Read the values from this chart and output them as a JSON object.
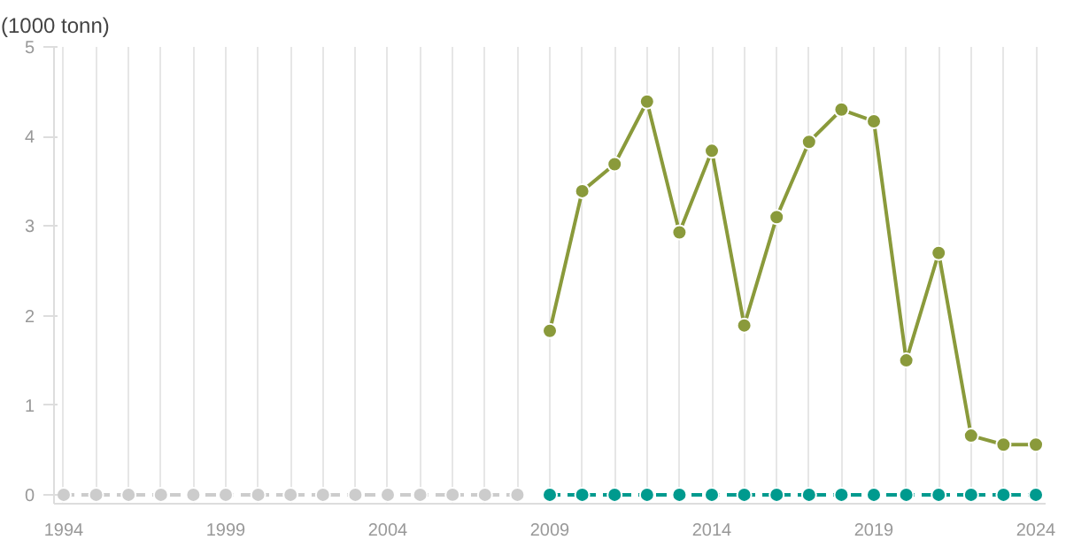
{
  "chart_data": {
    "type": "line",
    "ylabel": "(1000 tonn)",
    "xlim": [
      1993.7,
      2024.3
    ],
    "xticks": [
      1994,
      {
        "value": 1995,
        "label": null
      },
      {
        "value": 1996,
        "label": null
      },
      {
        "value": 1997,
        "label": null
      },
      {
        "value": 1998,
        "label": null
      },
      1999,
      {
        "value": 2000,
        "label": null
      },
      {
        "value": 2001,
        "label": null
      },
      {
        "value": 2002,
        "label": null
      },
      {
        "value": 2003,
        "label": null
      },
      2004,
      {
        "value": 2005,
        "label": null
      },
      {
        "value": 2006,
        "label": null
      },
      {
        "value": 2007,
        "label": null
      },
      {
        "value": 2008,
        "label": null
      },
      2009,
      {
        "value": 2010,
        "label": null
      },
      {
        "value": 2011,
        "label": null
      },
      {
        "value": 2012,
        "label": null
      },
      {
        "value": 2013,
        "label": null
      },
      2014,
      {
        "value": 2015,
        "label": null
      },
      {
        "value": 2016,
        "label": null
      },
      {
        "value": 2017,
        "label": null
      },
      {
        "value": 2018,
        "label": null
      },
      2019,
      {
        "value": 2020,
        "label": null
      },
      {
        "value": 2021,
        "label": null
      },
      {
        "value": 2022,
        "label": null
      },
      {
        "value": 2023,
        "label": null
      },
      2024
    ],
    "ylim": [
      -0.1,
      5
    ],
    "yticks": [
      0,
      1,
      2,
      3,
      4,
      5
    ],
    "grid": "x",
    "marker": "circle",
    "series": [
      {
        "color": "#cccccc",
        "line_style": "dashed",
        "x": [
          1994,
          1995,
          1996,
          1997,
          1998,
          1999,
          2000,
          2001,
          2002,
          2003,
          2004,
          2005,
          2006,
          2007,
          2008
        ],
        "values": [
          0,
          0,
          0,
          0,
          0,
          0,
          0,
          0,
          0,
          0,
          0,
          0,
          0,
          0,
          0
        ]
      },
      {
        "color": "#8a9a3b",
        "line_style": "solid",
        "x": [
          2009,
          2010,
          2011,
          2012,
          2013,
          2014,
          2015,
          2016,
          2017,
          2018,
          2019,
          2020,
          2021,
          2022,
          2023,
          2024
        ],
        "values": [
          1.83,
          3.39,
          3.69,
          4.39,
          2.93,
          3.84,
          1.89,
          3.1,
          3.94,
          4.3,
          4.17,
          1.5,
          2.7,
          0.66,
          0.56,
          0.56
        ]
      },
      {
        "color": "#009a8e",
        "line_style": "dashed",
        "x": [
          2009,
          2010,
          2011,
          2012,
          2013,
          2014,
          2015,
          2016,
          2017,
          2018,
          2019,
          2020,
          2021,
          2022,
          2023,
          2024
        ],
        "values": [
          0,
          0,
          0,
          0,
          0,
          0,
          0,
          0,
          0,
          0,
          0,
          0,
          0,
          0,
          0,
          0
        ]
      }
    ]
  }
}
